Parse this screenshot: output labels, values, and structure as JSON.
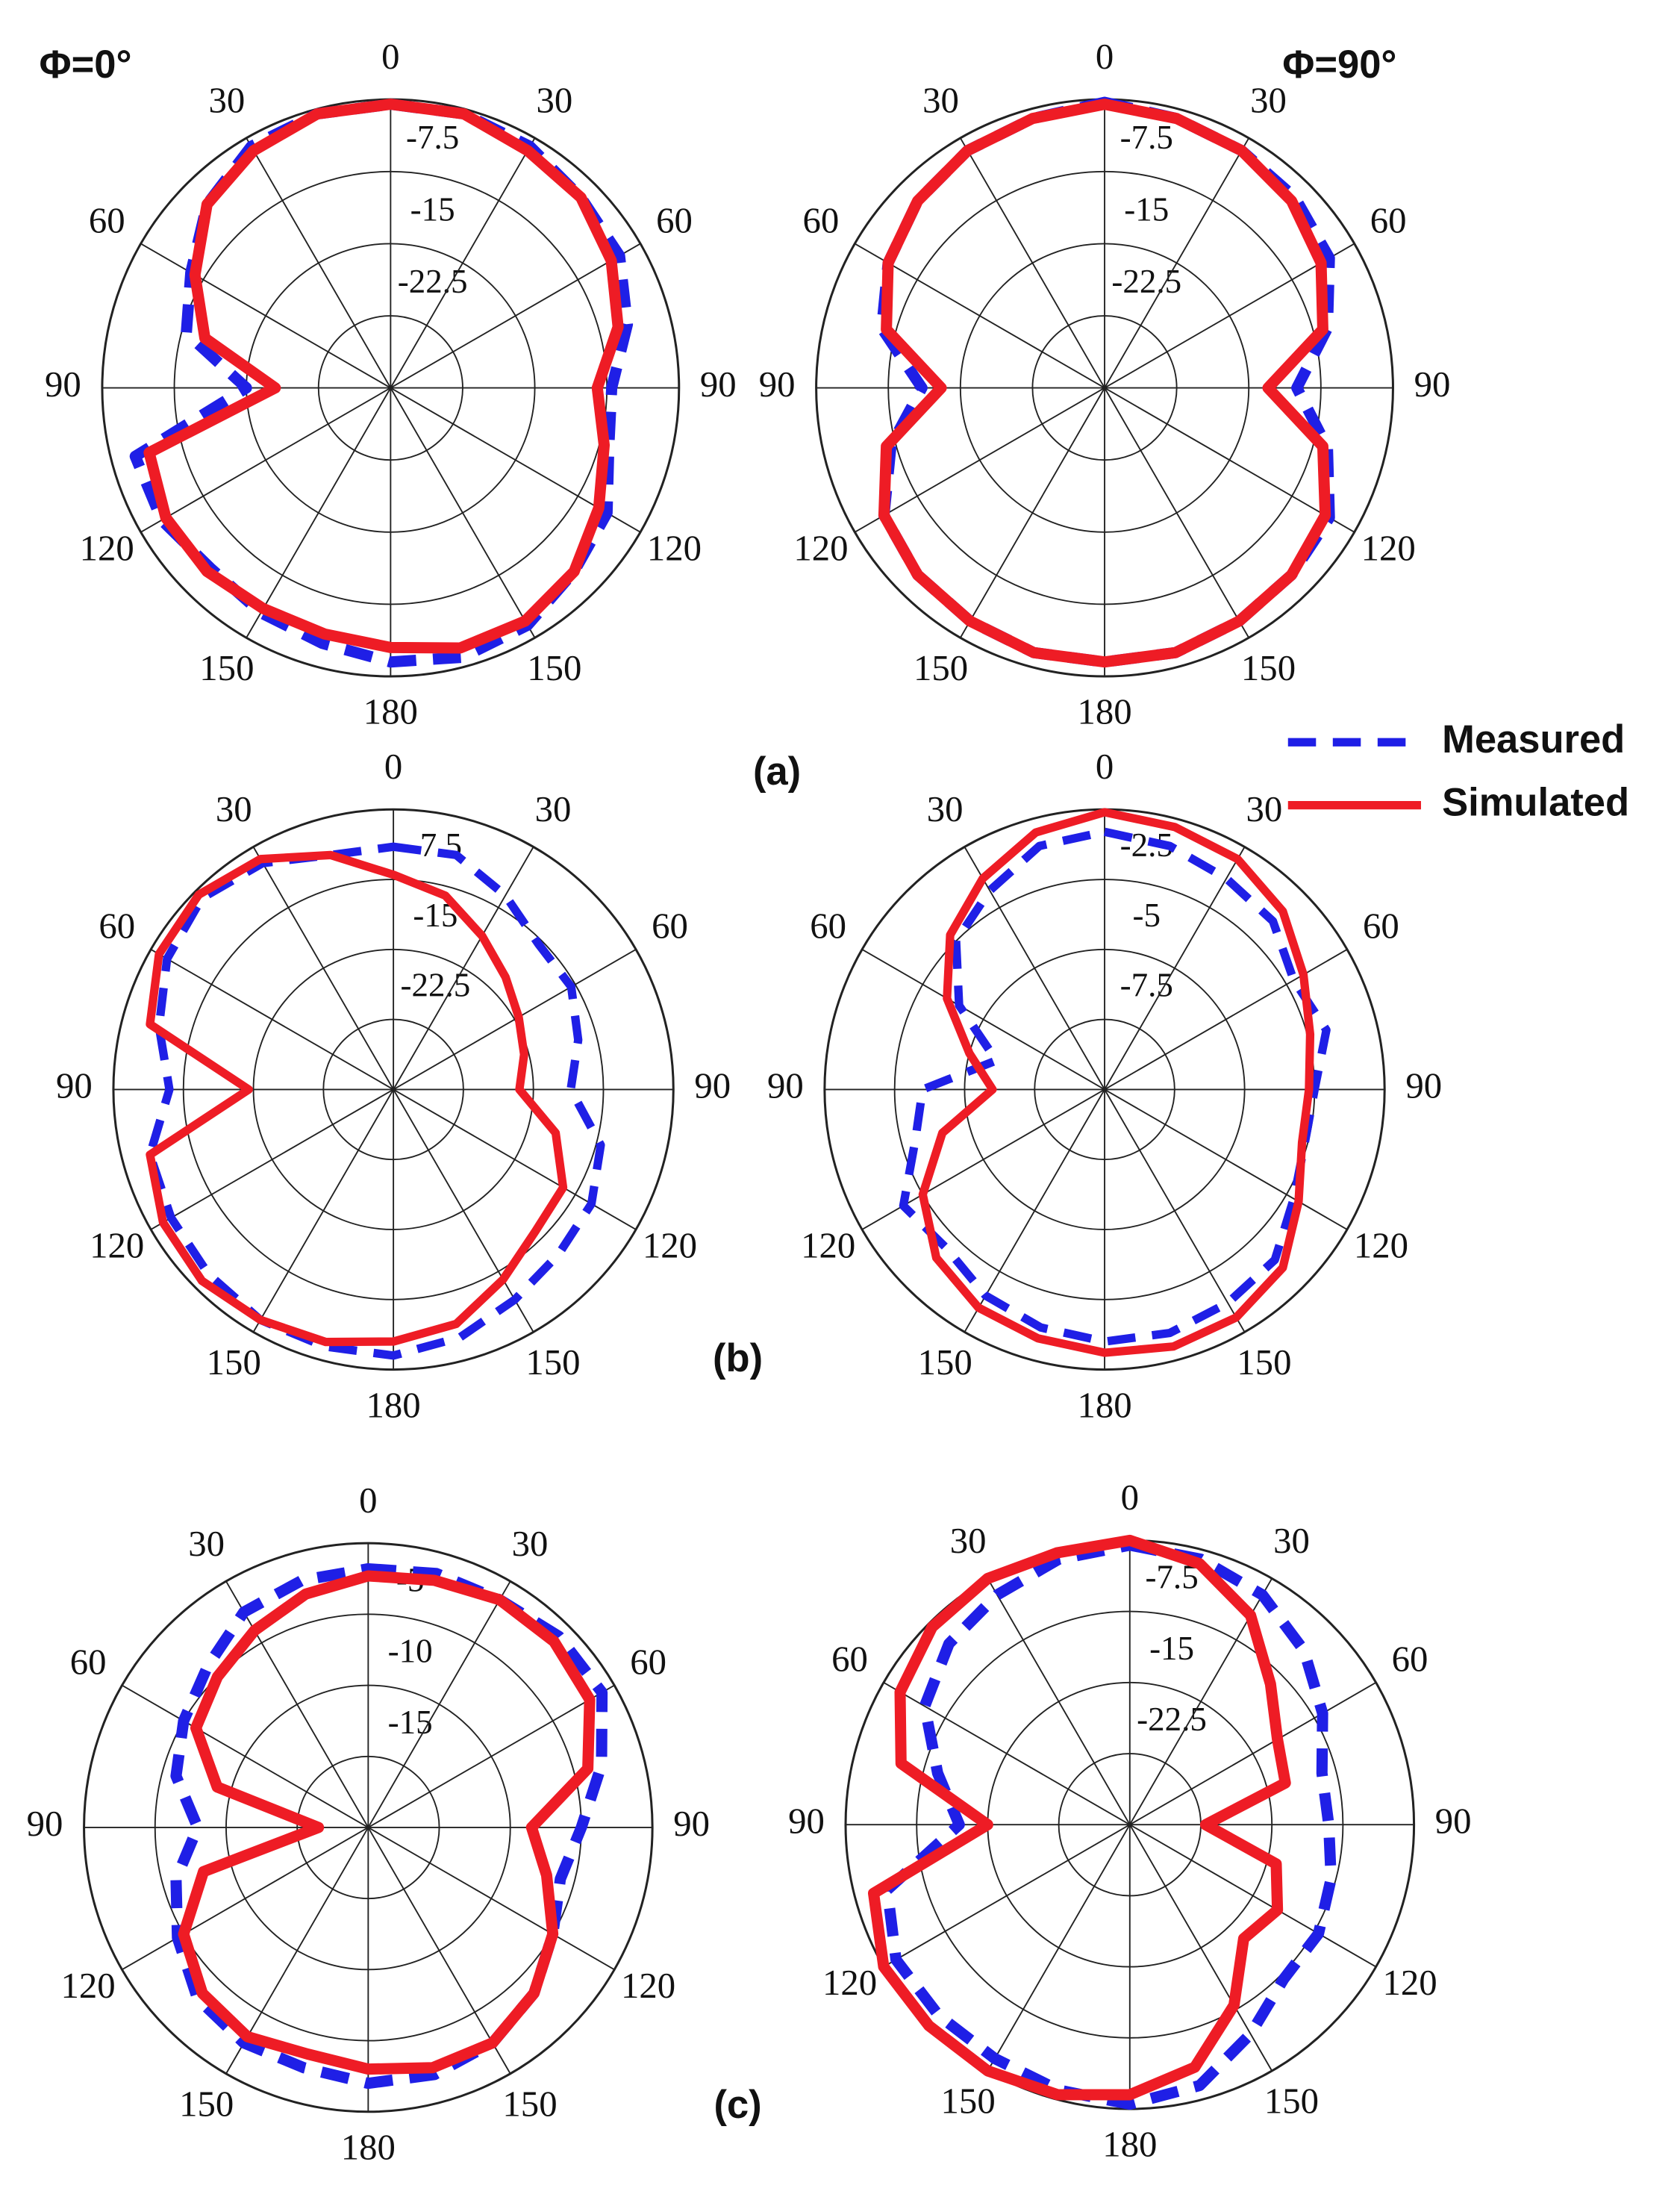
{
  "legend": [
    {
      "name": "Measured",
      "color": "#1f1fe6",
      "style": "dashed"
    },
    {
      "name": "Simulated",
      "color": "#ee1c25",
      "style": "solid"
    }
  ],
  "panels": [
    "(a)",
    "(b)",
    "(c)"
  ],
  "chart_data": [
    {
      "type": "polar",
      "title": "Φ=0°",
      "theta": [
        0,
        15,
        30,
        45,
        60,
        75,
        90,
        105,
        120,
        135,
        150,
        165,
        180,
        195,
        210,
        225,
        240,
        255,
        270,
        285,
        300,
        315,
        330,
        345
      ],
      "rlim": [
        -30,
        0
      ],
      "rticks": [
        -22.5,
        -15,
        -7.5
      ],
      "thetaticks": [
        0,
        {
          "value": 30,
          "label": "30"
        },
        {
          "value": 60,
          "label": "60"
        },
        90,
        {
          "value": 120,
          "label": "120"
        },
        {
          "value": 150,
          "label": "150"
        },
        180,
        {
          "value": 210,
          "label": "150"
        },
        {
          "value": 240,
          "label": "120"
        },
        {
          "value": 270,
          "label": "90"
        },
        {
          "value": 300,
          "label": "60"
        },
        {
          "value": 330,
          "label": "30"
        }
      ],
      "series": [
        {
          "values": [
            -0.5,
            -0.5,
            -1,
            -2,
            -2.5,
            -4.5,
            -7,
            -6.5,
            -4,
            -3,
            -1.5,
            -1,
            -1.5,
            -2.5,
            -3,
            -3.5,
            -2.5,
            -2.5,
            -15,
            -8,
            -6,
            -3,
            -1,
            -0.5
          ]
        },
        {
          "values": [
            -0.5,
            -0.5,
            -1.5,
            -2,
            -3.5,
            -5.5,
            -8.5,
            -7,
            -5,
            -3,
            -2,
            -2,
            -3,
            -3.5,
            -3.5,
            -3,
            -3,
            -4,
            -18,
            -10,
            -6.5,
            -3,
            -1.5,
            -0.5
          ]
        }
      ]
    },
    {
      "type": "polar",
      "title": "Φ=90°",
      "theta": [
        0,
        15,
        30,
        45,
        60,
        75,
        90,
        105,
        120,
        135,
        150,
        165,
        180,
        195,
        210,
        225,
        240,
        255,
        270,
        285,
        300,
        315,
        330,
        345
      ],
      "rlim": [
        -30,
        0
      ],
      "rticks": [
        -22.5,
        -15,
        -7.5
      ],
      "thetaticks": [
        0,
        {
          "value": 30,
          "label": "30"
        },
        {
          "value": 60,
          "label": "60"
        },
        90,
        {
          "value": 120,
          "label": "120"
        },
        {
          "value": 150,
          "label": "150"
        },
        180,
        {
          "value": 210,
          "label": "150"
        },
        {
          "value": 240,
          "label": "120"
        },
        {
          "value": 270,
          "label": "90"
        },
        {
          "value": 300,
          "label": "60"
        },
        {
          "value": 330,
          "label": "30"
        }
      ],
      "series": [
        {
          "values": [
            -0.3,
            -1,
            -1.5,
            -2,
            -3,
            -6,
            -10,
            -6,
            -3,
            -2.5,
            -2,
            -1.5,
            -1.5,
            -1.5,
            -2,
            -2.5,
            -3.5,
            -7,
            -11,
            -6,
            -4,
            -2.5,
            -1.5,
            -1
          ]
        },
        {
          "values": [
            -0.5,
            -1,
            -1.5,
            -2.5,
            -4,
            -6.5,
            -13,
            -6.5,
            -3.5,
            -2.5,
            -2,
            -1.5,
            -1.5,
            -1.5,
            -2,
            -2.5,
            -3.5,
            -6.5,
            -13,
            -6.5,
            -4,
            -2.5,
            -1.5,
            -1
          ]
        }
      ]
    },
    {
      "type": "polar",
      "theta": [
        0,
        15,
        30,
        45,
        60,
        75,
        90,
        105,
        120,
        135,
        150,
        165,
        180,
        195,
        210,
        225,
        240,
        255,
        270,
        285,
        300,
        315,
        330,
        345
      ],
      "rlim": [
        -30,
        0
      ],
      "rticks": [
        -22.5,
        -15,
        -7.5
      ],
      "thetaticks": [
        0,
        {
          "value": 30,
          "label": "30"
        },
        {
          "value": 60,
          "label": "60"
        },
        90,
        {
          "value": 120,
          "label": "120"
        },
        {
          "value": 150,
          "label": "150"
        },
        180,
        {
          "value": 210,
          "label": "150"
        },
        {
          "value": 240,
          "label": "120"
        },
        {
          "value": 270,
          "label": "90"
        },
        {
          "value": 300,
          "label": "60"
        },
        {
          "value": 330,
          "label": "30"
        }
      ],
      "series": [
        {
          "values": [
            -4,
            -4,
            -6,
            -8,
            -8,
            -9.5,
            -11,
            -7,
            -5.5,
            -5,
            -4,
            -2.5,
            -1.5,
            -1.5,
            -1.5,
            -2,
            -2.5,
            -3,
            -6,
            -4,
            -2,
            -1,
            -2,
            -4
          ]
        },
        {
          "values": [
            -7,
            -8.5,
            -11,
            -13,
            -14.5,
            -15.5,
            -16.5,
            -12,
            -9,
            -8.5,
            -6.5,
            -4,
            -3,
            -2,
            -1.5,
            -1,
            -1.5,
            -3,
            -14.5,
            -3,
            -1,
            -0.5,
            -1.5,
            -4
          ]
        }
      ]
    },
    {
      "type": "polar",
      "theta": [
        0,
        15,
        30,
        45,
        60,
        75,
        90,
        105,
        120,
        135,
        150,
        165,
        180,
        195,
        210,
        225,
        240,
        255,
        270,
        285,
        300,
        315,
        330,
        345
      ],
      "rlim": [
        -10,
        0
      ],
      "rticks": [
        -7.5,
        -5,
        -2.5
      ],
      "thetaticks": [
        0,
        {
          "value": 30,
          "label": "30"
        },
        {
          "value": 60,
          "label": "60"
        },
        90,
        {
          "value": 120,
          "label": "120"
        },
        {
          "value": 150,
          "label": "150"
        },
        180,
        {
          "value": 210,
          "label": "150"
        },
        {
          "value": 240,
          "label": "120"
        },
        {
          "value": 270,
          "label": "90"
        },
        {
          "value": 300,
          "label": "60"
        },
        {
          "value": 330,
          "label": "30"
        }
      ],
      "series": [
        {
          "values": [
            -0.8,
            -1,
            -1.3,
            -1.5,
            -2.2,
            -1.8,
            -2.5,
            -2.6,
            -2.2,
            -1.4,
            -1.2,
            -1,
            -1,
            -1.2,
            -1.5,
            -2,
            -1.7,
            -3,
            -3.5,
            -6,
            -4,
            -2.5,
            -1.8,
            -1
          ]
        },
        {
          "values": [
            -0.1,
            -0.3,
            -0.5,
            -1,
            -1.8,
            -2.4,
            -2.7,
            -2.7,
            -2,
            -1,
            -0.6,
            -0.5,
            -0.6,
            -0.8,
            -1,
            -1.5,
            -2.5,
            -4,
            -6,
            -5,
            -3.5,
            -2.2,
            -1.3,
            -0.5
          ]
        }
      ]
    },
    {
      "type": "polar",
      "theta": [
        0,
        15,
        30,
        45,
        60,
        75,
        90,
        105,
        120,
        135,
        150,
        165,
        180,
        195,
        210,
        225,
        240,
        255,
        270,
        285,
        300,
        315,
        330,
        345
      ],
      "rlim": [
        -20,
        0
      ],
      "rticks": [
        -15,
        -10,
        -5
      ],
      "thetaticks": [
        0,
        {
          "value": 30,
          "label": "30"
        },
        {
          "value": 60,
          "label": "60"
        },
        90,
        {
          "value": 120,
          "label": "120"
        },
        {
          "value": 150,
          "label": "150"
        },
        180,
        {
          "value": 210,
          "label": "150"
        },
        {
          "value": 240,
          "label": "120"
        },
        {
          "value": 270,
          "label": "90"
        },
        {
          "value": 300,
          "label": "60"
        },
        {
          "value": 330,
          "label": "30"
        }
      ],
      "series": [
        {
          "values": [
            -1.8,
            -1.5,
            -1.5,
            -1,
            -1,
            -3,
            -5,
            -6,
            -5,
            -3.5,
            -2.5,
            -2,
            -2,
            -2.5,
            -2.5,
            -3,
            -4.5,
            -6,
            -8,
            -6,
            -5,
            -4,
            -2.5,
            -2
          ]
        },
        {
          "values": [
            -2.3,
            -2,
            -1.5,
            -1.5,
            -2,
            -4,
            -8.5,
            -7,
            -5,
            -3.5,
            -2.5,
            -2.5,
            -3,
            -3.5,
            -3,
            -3.5,
            -5,
            -8,
            -16.5,
            -9,
            -6,
            -5,
            -4,
            -3
          ]
        }
      ]
    },
    {
      "type": "polar",
      "theta": [
        0,
        15,
        30,
        45,
        60,
        75,
        90,
        105,
        120,
        135,
        150,
        165,
        180,
        195,
        210,
        225,
        240,
        255,
        270,
        285,
        300,
        315,
        330,
        345
      ],
      "rlim": [
        -30,
        0
      ],
      "rticks": [
        -22.5,
        -15,
        -7.5
      ],
      "thetaticks": [
        0,
        {
          "value": 30,
          "label": "30"
        },
        {
          "value": 60,
          "label": "60"
        },
        90,
        {
          "value": 120,
          "label": "120"
        },
        {
          "value": 150,
          "label": "150"
        },
        180,
        {
          "value": 210,
          "label": "150"
        },
        {
          "value": 240,
          "label": "120"
        },
        {
          "value": 270,
          "label": "90"
        },
        {
          "value": 300,
          "label": "60"
        },
        {
          "value": 330,
          "label": "30"
        }
      ],
      "series": [
        {
          "values": [
            -0.5,
            -1,
            -2,
            -4,
            -6.5,
            -9,
            -9,
            -8,
            -7,
            -7,
            -4.5,
            -1.5,
            -0.5,
            -1,
            -1.5,
            -1.5,
            -1.5,
            -3.5,
            -12,
            -9,
            -5,
            -3,
            -2,
            -1
          ]
        },
        {
          "values": [
            0,
            -1.5,
            -4.5,
            -9,
            -12,
            -13,
            -22,
            -14,
            -12,
            -13,
            -8,
            -3.5,
            -1.5,
            -0.5,
            0,
            0,
            0,
            -2,
            -15,
            -5,
            -2,
            -0.5,
            0,
            -0.3
          ]
        }
      ]
    }
  ]
}
